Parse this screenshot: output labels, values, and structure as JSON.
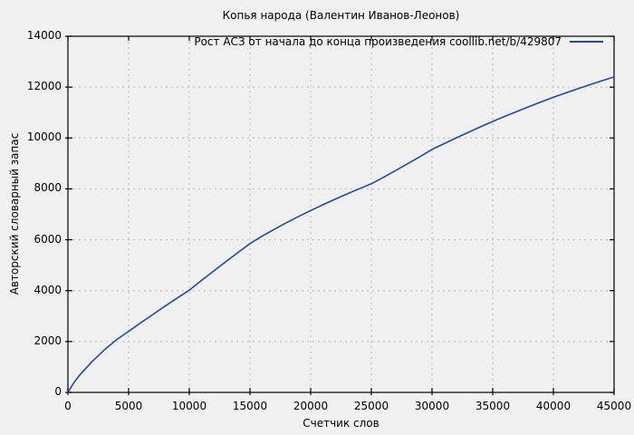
{
  "colors": {
    "background": "#f0f0f0",
    "grid": "#b8b8b8",
    "axis": "#000000",
    "text": "#000000",
    "series_line": "#2149a8"
  },
  "chart_data": {
    "type": "line",
    "title": "Копья народа (Валентин Иванов-Леонов)",
    "xlabel": "Счетчик слов",
    "ylabel": "Авторский словарный запас",
    "xlim": [
      0,
      45000
    ],
    "ylim": [
      0,
      14000
    ],
    "xticks": [
      0,
      5000,
      10000,
      15000,
      20000,
      25000,
      30000,
      35000,
      40000,
      45000
    ],
    "yticks": [
      0,
      2000,
      4000,
      6000,
      8000,
      10000,
      12000,
      14000
    ],
    "grid": true,
    "legend_position": "top-right-inside",
    "series": [
      {
        "name": "Рост АСЗ от начала до конца произведения  coollib.net/b/429807",
        "color": "#2149a8",
        "x": [
          0,
          500,
          1000,
          2000,
          3000,
          4000,
          5000,
          6000,
          7000,
          8000,
          9000,
          10000,
          11000,
          12000,
          13000,
          14000,
          15000,
          16000,
          17000,
          18000,
          19000,
          20000,
          21000,
          22000,
          23000,
          24000,
          25000,
          26000,
          27000,
          28000,
          29000,
          30000,
          31000,
          32000,
          33000,
          34000,
          35000,
          36000,
          37000,
          38000,
          39000,
          40000,
          41000,
          42000,
          43000,
          44000,
          45000
        ],
        "y": [
          0,
          390,
          700,
          1220,
          1670,
          2070,
          2400,
          2735,
          3065,
          3390,
          3708,
          4020,
          4400,
          4770,
          5135,
          5495,
          5850,
          6140,
          6410,
          6670,
          6915,
          7150,
          7375,
          7590,
          7800,
          8005,
          8200,
          8455,
          8720,
          8990,
          9265,
          9550,
          9780,
          10005,
          10225,
          10440,
          10650,
          10850,
          11045,
          11235,
          11420,
          11600,
          11770,
          11935,
          12095,
          12250,
          12400
        ]
      }
    ]
  }
}
